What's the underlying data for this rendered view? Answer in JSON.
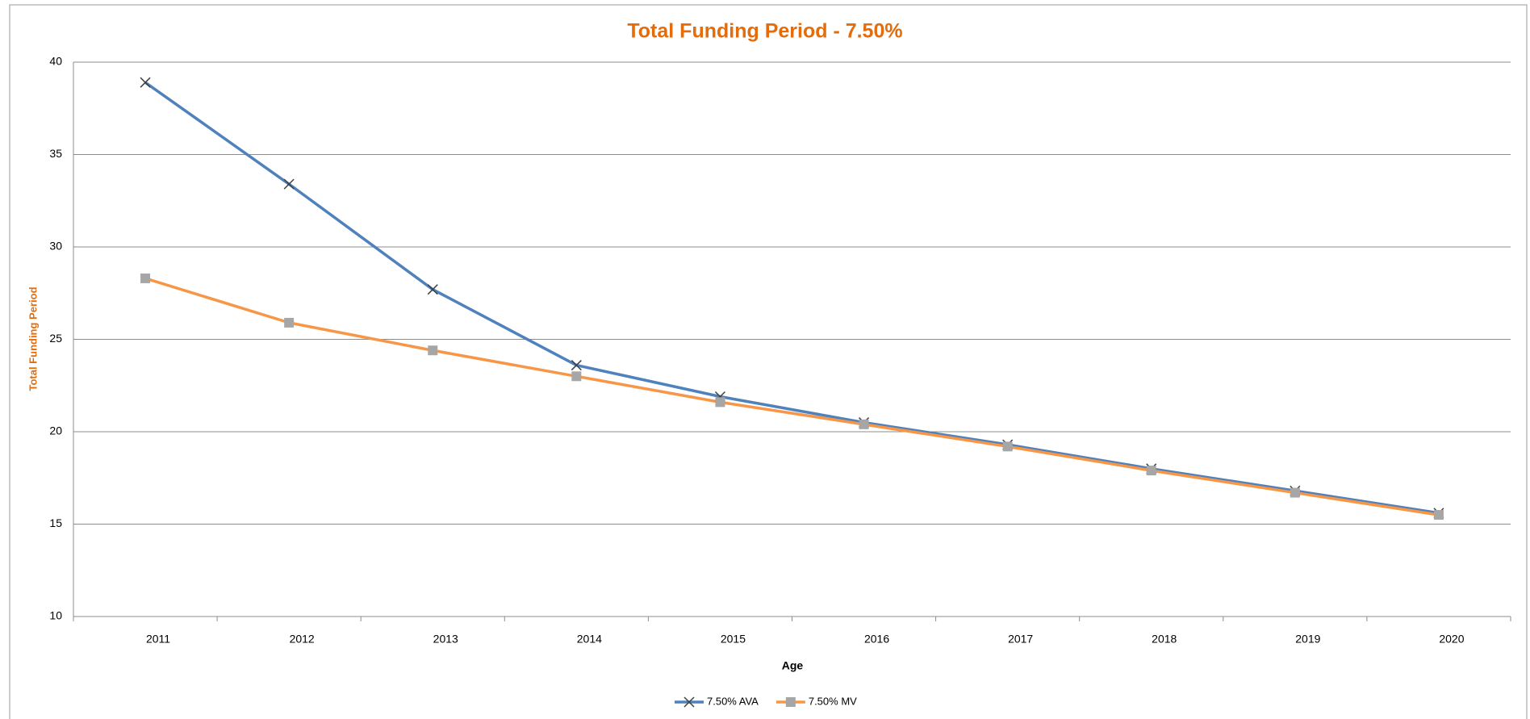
{
  "chart_data": {
    "type": "line",
    "title": "Total Funding Period - 7.50%",
    "xlabel": "Age",
    "ylabel": "Total Funding  Period",
    "categories": [
      "2011",
      "2012",
      "2013",
      "2014",
      "2015",
      "2016",
      "2017",
      "2018",
      "2019",
      "2020"
    ],
    "series": [
      {
        "name": "7.50% AVA",
        "color": "#4f81bd",
        "marker": "x",
        "marker_color": "#404040",
        "values": [
          38.9,
          33.4,
          27.7,
          23.6,
          21.9,
          20.5,
          19.3,
          18.0,
          16.8,
          15.6
        ]
      },
      {
        "name": "7.50% MV",
        "color": "#f79646",
        "marker": "square",
        "marker_color": "#a6a6a6",
        "values": [
          28.3,
          25.9,
          24.4,
          23.0,
          21.6,
          20.4,
          19.2,
          17.9,
          16.7,
          15.5
        ]
      }
    ],
    "ylim": [
      10,
      40
    ],
    "yticks": [
      10,
      15,
      20,
      25,
      30,
      35,
      40
    ],
    "grid": true,
    "legend": "bottom"
  }
}
